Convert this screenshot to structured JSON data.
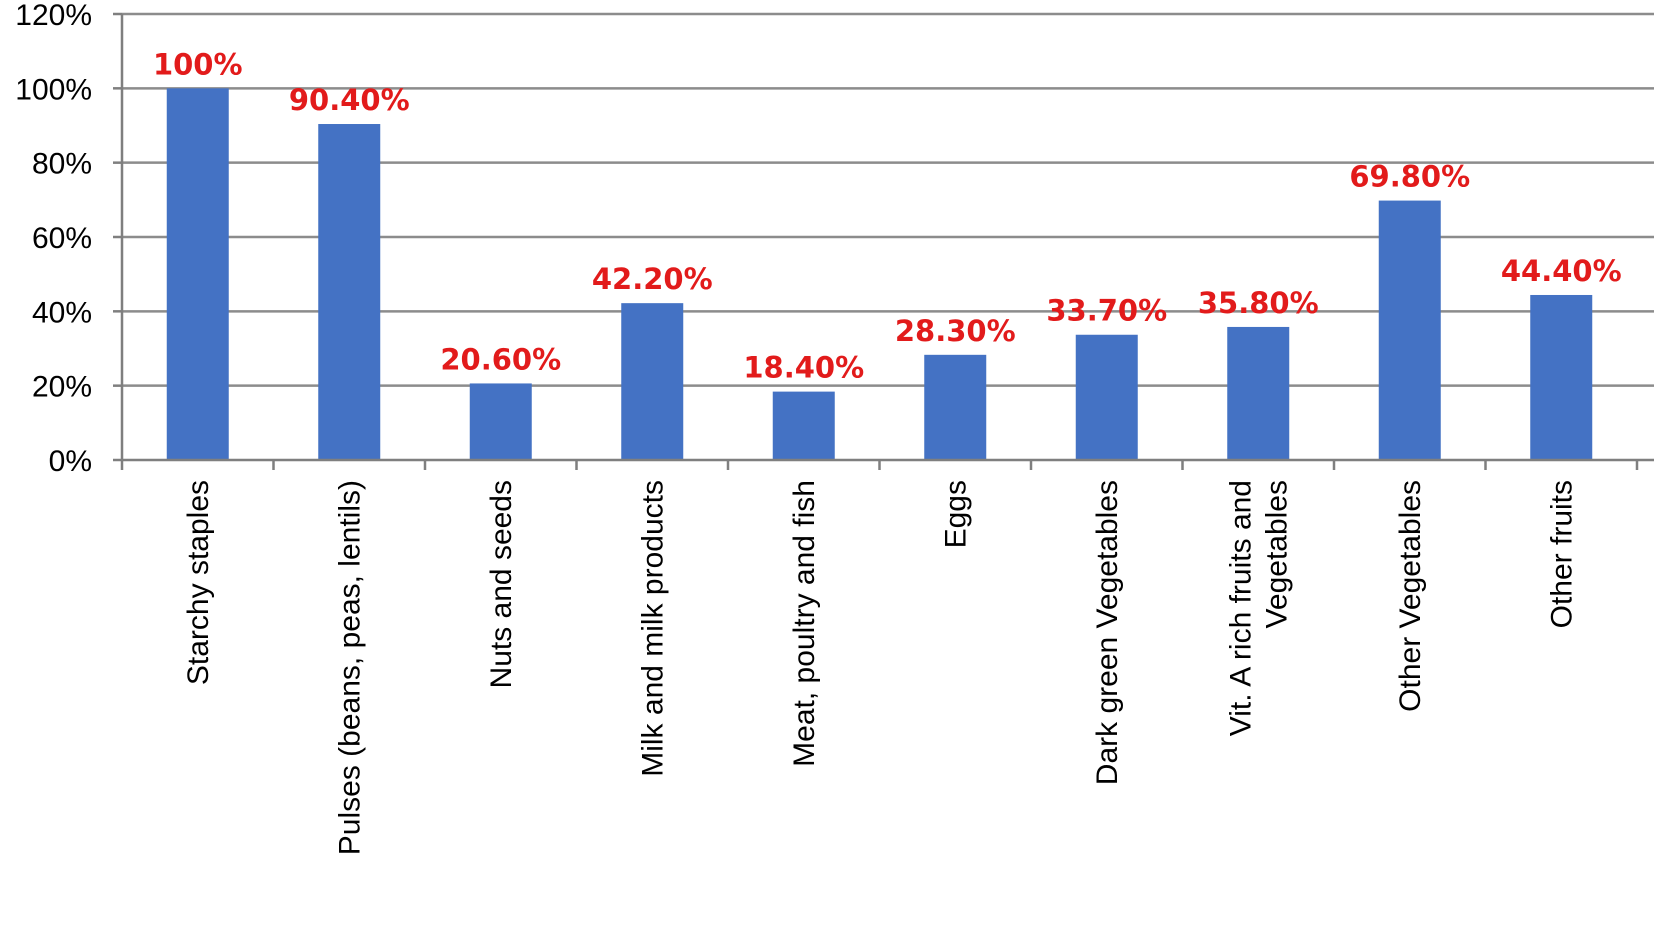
{
  "chart_data": {
    "type": "bar",
    "categories": [
      [
        "Starchy staples"
      ],
      [
        "Pulses (beans, peas, lentils)"
      ],
      [
        "Nuts and seeds"
      ],
      [
        "Milk and milk products"
      ],
      [
        "Meat, poultry and fish"
      ],
      [
        "Eggs"
      ],
      [
        "Dark green Vegetables"
      ],
      [
        "Vit. A rich fruits and",
        "Vegetables"
      ],
      [
        "Other Vegetables"
      ],
      [
        "Other fruits"
      ]
    ],
    "values": [
      100,
      90.4,
      20.6,
      42.2,
      18.4,
      28.3,
      33.7,
      35.8,
      69.8,
      44.4
    ],
    "data_labels": [
      "100%",
      "90.40%",
      "20.60%",
      "42.20%",
      "18.40%",
      "28.30%",
      "33.70%",
      "35.80%",
      "69.80%",
      "44.40%"
    ],
    "yticks": [
      "0%",
      "20%",
      "40%",
      "60%",
      "80%",
      "100%",
      "120%"
    ],
    "ylim": [
      0,
      120
    ],
    "grid": true,
    "legend": "none",
    "colors": {
      "bar": "#4472C4",
      "label": "#E21B1B",
      "grid": "#8C8C8C",
      "axis": "#7F7F7F"
    }
  }
}
